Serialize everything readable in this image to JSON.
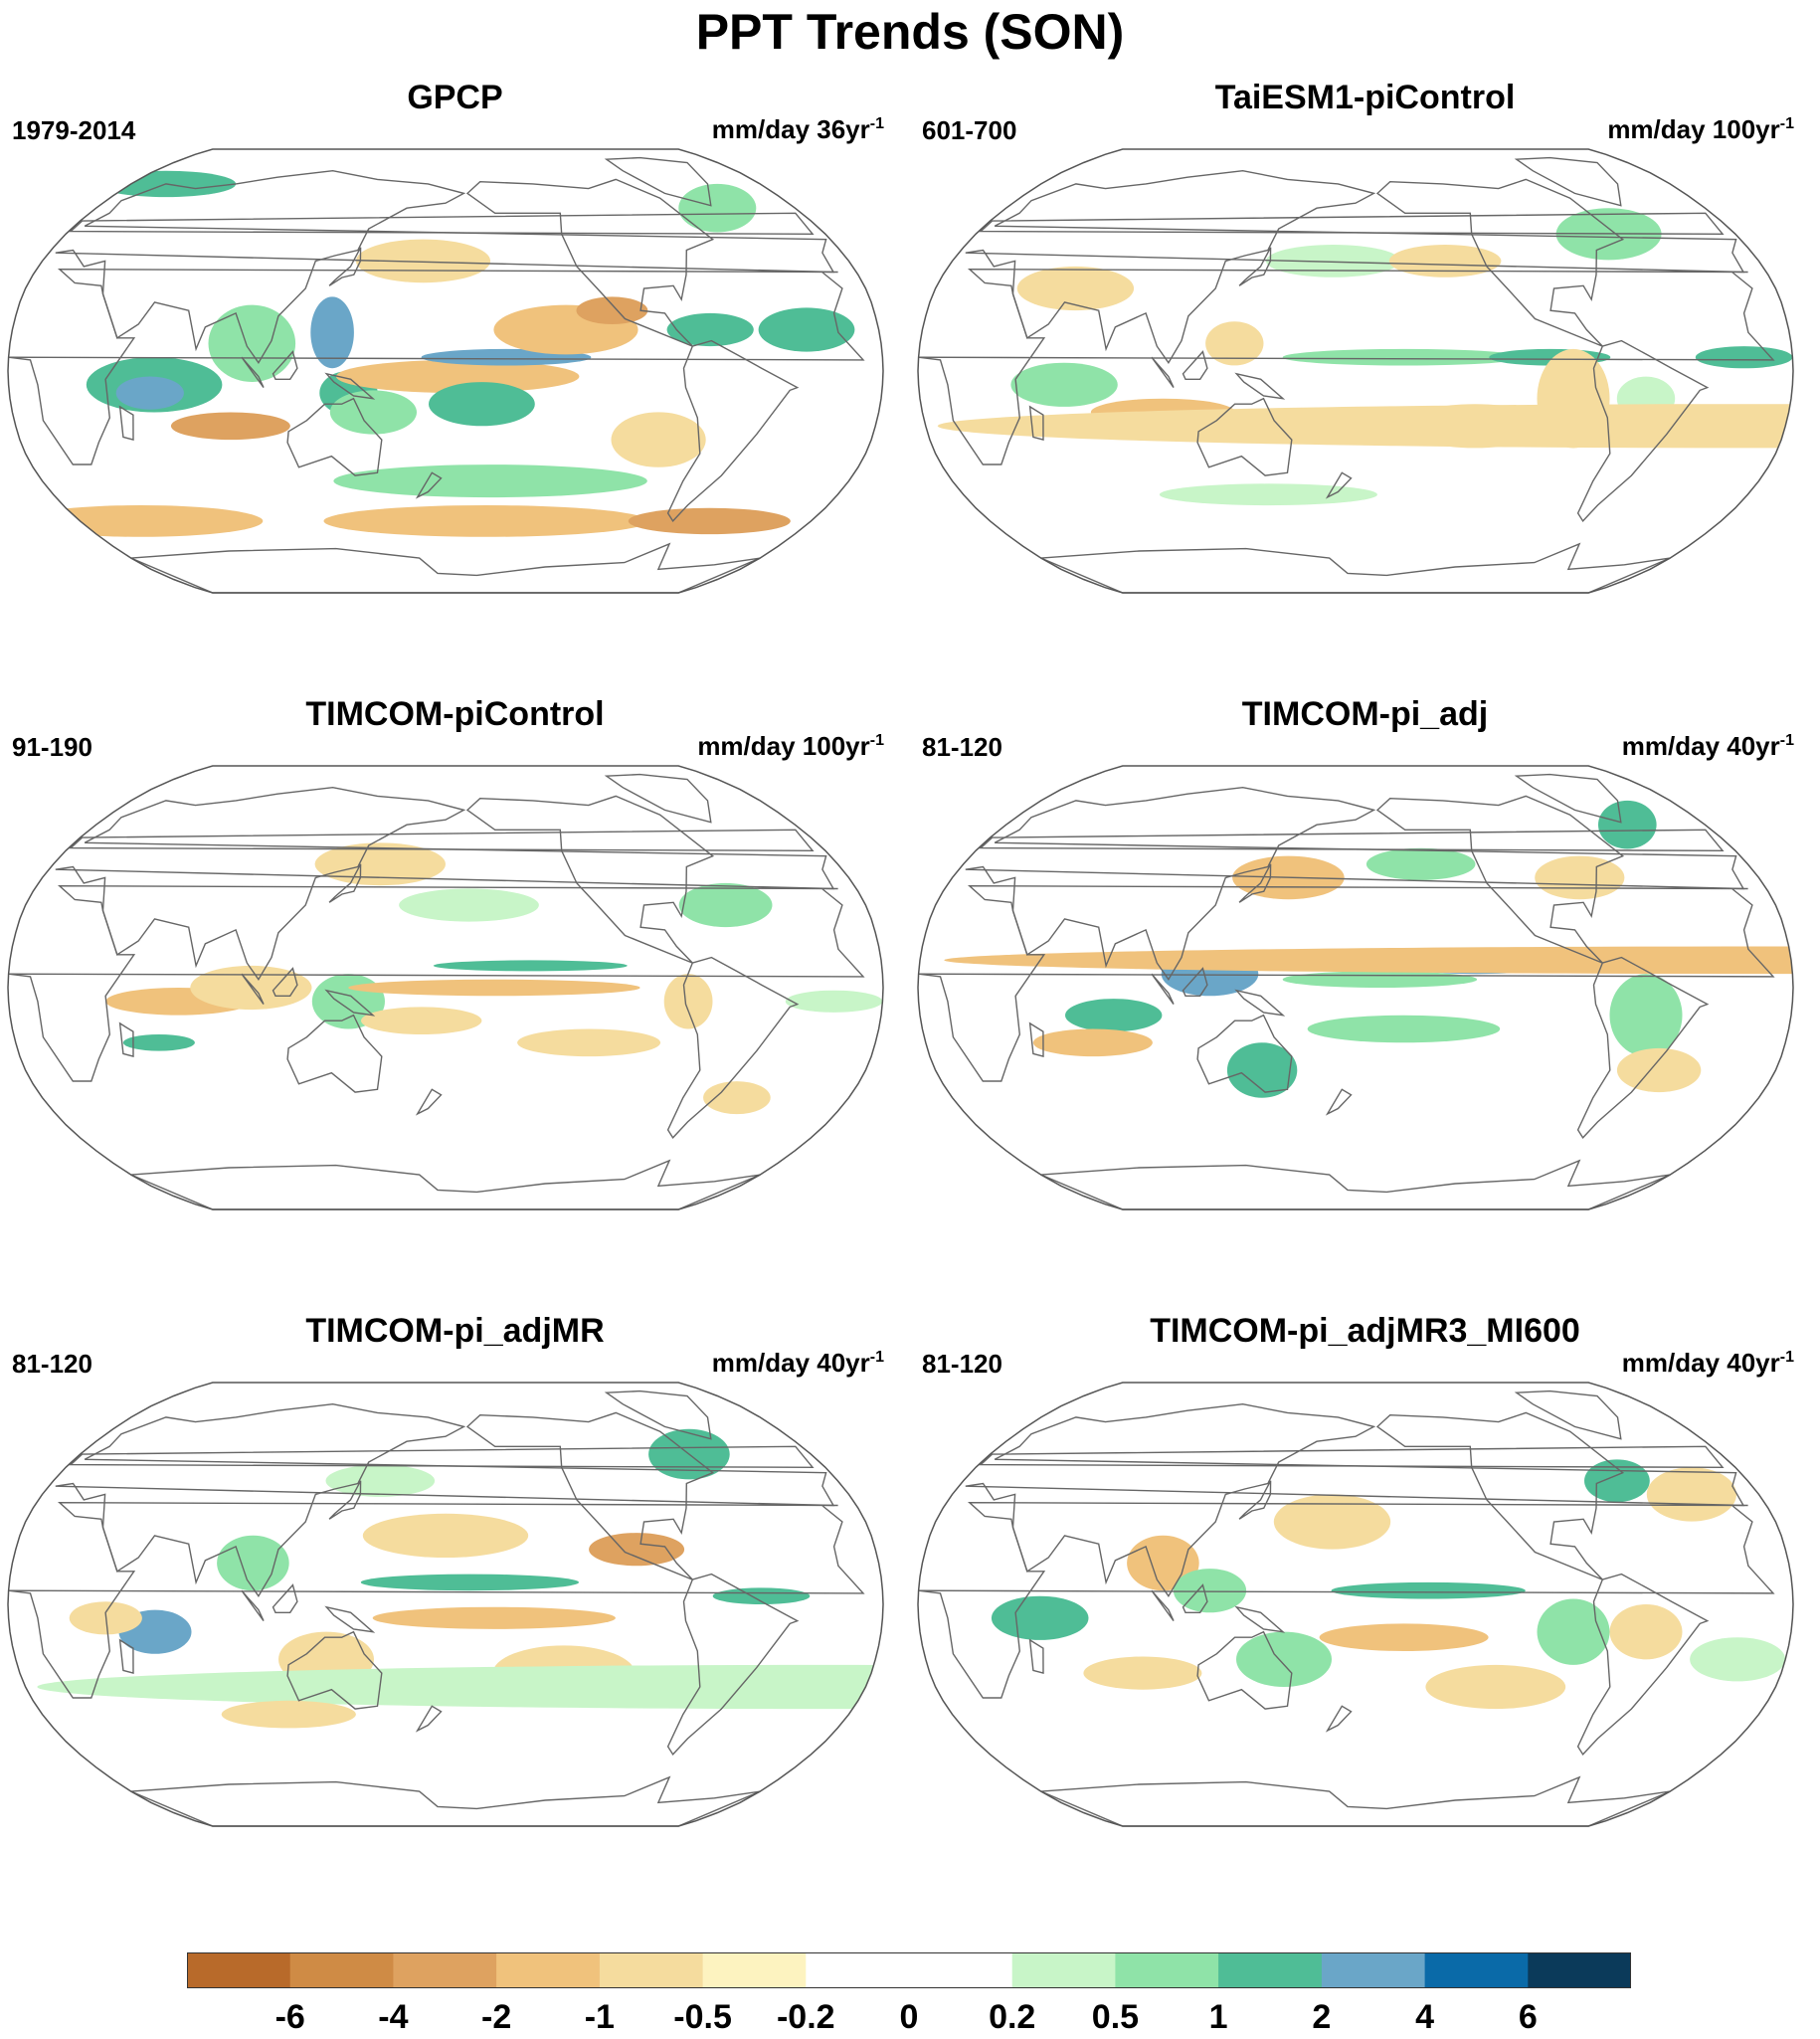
{
  "title": "PPT Trends (SON)",
  "panels": [
    {
      "title": "GPCP",
      "period": "1979-2014",
      "units": "mm/day 36yr",
      "units_exp": "-1"
    },
    {
      "title": "TaiESM1-piControl",
      "period": "601-700",
      "units": "mm/day 100yr",
      "units_exp": "-1"
    },
    {
      "title": "TIMCOM-piControl",
      "period": "91-190",
      "units": "mm/day 100yr",
      "units_exp": "-1"
    },
    {
      "title": "TIMCOM-pi_adj",
      "period": "81-120",
      "units": "mm/day 40yr",
      "units_exp": "-1"
    },
    {
      "title": "TIMCOM-pi_adjMR",
      "period": "81-120",
      "units": "mm/day 40yr",
      "units_exp": "-1"
    },
    {
      "title": "TIMCOM-pi_adjMR3_MI600",
      "period": "81-120",
      "units": "mm/day 40yr",
      "units_exp": "-1"
    }
  ],
  "colorbar": {
    "labels": [
      "-6",
      "-4",
      "-2",
      "-1",
      "-0.5",
      "-0.2",
      "0",
      "0.2",
      "0.5",
      "1",
      "2",
      "4",
      "6"
    ],
    "colors": [
      "#b86a2a",
      "#cf8b45",
      "#dea260",
      "#f0c27c",
      "#f5dc9e",
      "#fdf3c0",
      "#ffffff",
      "#ffffff",
      "#c8f5c8",
      "#8fe3a8",
      "#4fbd96",
      "#6aa6c8",
      "#0a6aa8",
      "#0b3a5a"
    ]
  },
  "chart_data": {
    "type": "map",
    "title": "PPT Trends (SON)",
    "projection": "Robinson, Pacific-centered",
    "contour_levels": [
      -6,
      -4,
      -2,
      -1,
      -0.5,
      -0.2,
      0,
      0.2,
      0.5,
      1,
      2,
      4,
      6
    ],
    "variable_units": "mm/day per period",
    "panels": [
      {
        "name": "GPCP",
        "period": "1979-2014",
        "units": "mm/day 36yr-1"
      },
      {
        "name": "TaiESM1-piControl",
        "period": "601-700",
        "units": "mm/day 100yr-1"
      },
      {
        "name": "TIMCOM-piControl",
        "period": "91-190",
        "units": "mm/day 100yr-1"
      },
      {
        "name": "TIMCOM-pi_adj",
        "period": "81-120",
        "units": "mm/day 40yr-1"
      },
      {
        "name": "TIMCOM-pi_adjMR",
        "period": "81-120",
        "units": "mm/day 40yr-1"
      },
      {
        "name": "TIMCOM-pi_adjMR3_MI600",
        "period": "81-120",
        "units": "mm/day 40yr-1"
      }
    ]
  }
}
